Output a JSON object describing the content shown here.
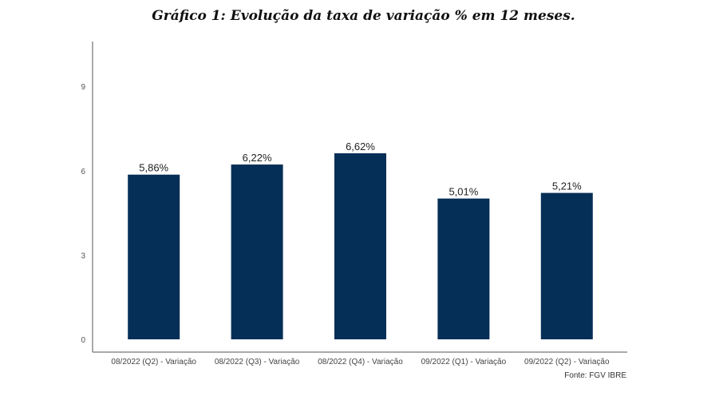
{
  "chart_data": {
    "type": "bar",
    "title": "Gráfico 1: Evolução da taxa de variação % em 12 meses.",
    "categories": [
      "08/2022 (Q2) - Variação",
      "08/2022 (Q3) - Variação",
      "08/2022 (Q4) - Variação",
      "09/2022 (Q1) - Variação",
      "09/2022 (Q2) - Variação"
    ],
    "values": [
      5.86,
      6.22,
      6.62,
      5.01,
      5.21
    ],
    "data_labels": [
      "5,86%",
      "6,22%",
      "6,62%",
      "5,01%",
      "5,21%"
    ],
    "y_ticks": [
      "0",
      "3",
      "6",
      "9"
    ],
    "ylim": [
      0,
      10.5
    ],
    "grid": false,
    "bar_color": "#062f57",
    "xlabel": "",
    "ylabel": "",
    "source": "Fonte: FGV IBRE"
  }
}
